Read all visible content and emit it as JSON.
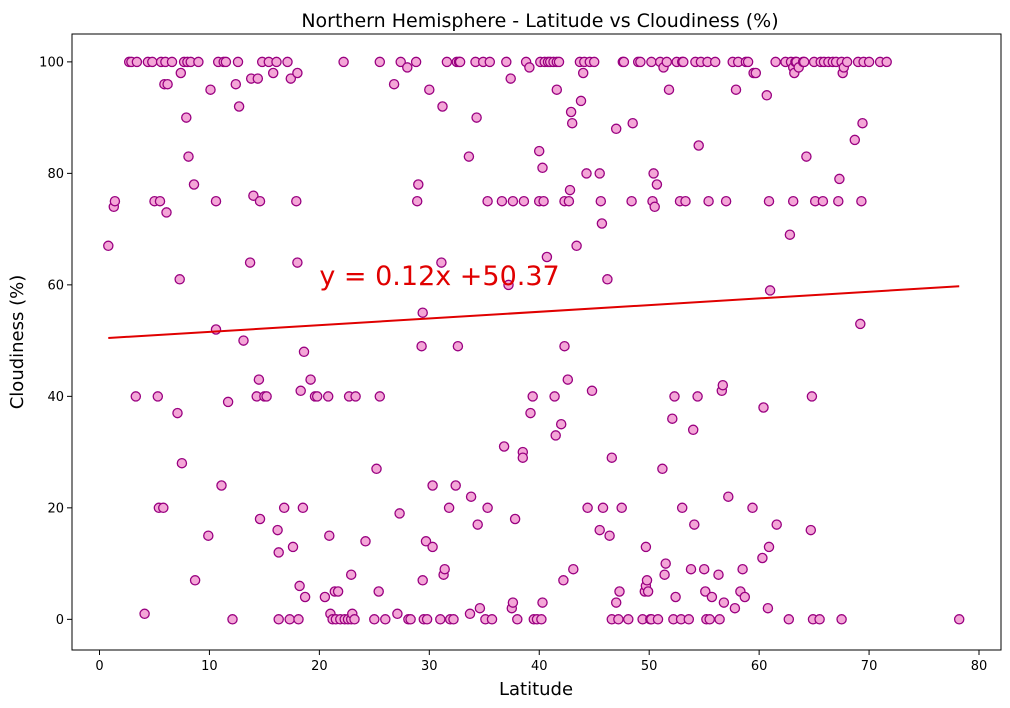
{
  "chart_data": {
    "type": "scatter",
    "title": "Northern Hemisphere - Latitude vs Cloudiness (%)",
    "xlabel": "Latitude",
    "ylabel": "Cloudiness (%)",
    "xlim": [
      -2.5,
      82
    ],
    "ylim": [
      -5.5,
      105
    ],
    "xticks": [
      0,
      10,
      20,
      30,
      40,
      50,
      60,
      70,
      80
    ],
    "yticks": [
      0,
      20,
      40,
      60,
      80,
      100
    ],
    "grid": false,
    "marker": {
      "fill": "#f4a6d7",
      "stroke": "#990080"
    },
    "regression": {
      "slope": 0.12,
      "intercept": 50.37,
      "x_range": [
        0.8,
        78.2
      ],
      "color": "#e00000",
      "equation_label": "y = 0.12x +50.37",
      "equation_position": [
        20,
        60
      ]
    },
    "points": [
      [
        0.8,
        67
      ],
      [
        1.3,
        74
      ],
      [
        1.4,
        75
      ],
      [
        2.7,
        100
      ],
      [
        2.9,
        100
      ],
      [
        3.3,
        40
      ],
      [
        3.4,
        100
      ],
      [
        4.1,
        1
      ],
      [
        4.4,
        100
      ],
      [
        4.8,
        100
      ],
      [
        5,
        75
      ],
      [
        5.3,
        40
      ],
      [
        5.4,
        20
      ],
      [
        5.5,
        75
      ],
      [
        5.6,
        100
      ],
      [
        5.8,
        20
      ],
      [
        5.9,
        96
      ],
      [
        6,
        100
      ],
      [
        6.2,
        96
      ],
      [
        6.1,
        73
      ],
      [
        6.6,
        100
      ],
      [
        7.1,
        37
      ],
      [
        7.3,
        61
      ],
      [
        7.4,
        98
      ],
      [
        7.5,
        28
      ],
      [
        7.7,
        100
      ],
      [
        7.9,
        90
      ],
      [
        8,
        100
      ],
      [
        8.1,
        83
      ],
      [
        8.3,
        100
      ],
      [
        8.6,
        78
      ],
      [
        8.7,
        7
      ],
      [
        9,
        100
      ],
      [
        9.9,
        15
      ],
      [
        10.1,
        95
      ],
      [
        10.6,
        75
      ],
      [
        10.6,
        52
      ],
      [
        10.8,
        100
      ],
      [
        11.1,
        24
      ],
      [
        11.3,
        100
      ],
      [
        11.5,
        100
      ],
      [
        11.7,
        39
      ],
      [
        12.1,
        0
      ],
      [
        12.4,
        96
      ],
      [
        12.6,
        100
      ],
      [
        12.7,
        92
      ],
      [
        13.1,
        50
      ],
      [
        13.7,
        64
      ],
      [
        13.8,
        97
      ],
      [
        14,
        76
      ],
      [
        14.3,
        40
      ],
      [
        14.4,
        97
      ],
      [
        14.5,
        43
      ],
      [
        14.6,
        75
      ],
      [
        14.6,
        18
      ],
      [
        14.8,
        100
      ],
      [
        15,
        40
      ],
      [
        15.2,
        40
      ],
      [
        15.4,
        100
      ],
      [
        15.8,
        98
      ],
      [
        16.1,
        100
      ],
      [
        16.2,
        16
      ],
      [
        16.3,
        0
      ],
      [
        16.3,
        12
      ],
      [
        16.8,
        20
      ],
      [
        17.1,
        100
      ],
      [
        17.3,
        0
      ],
      [
        17.4,
        97
      ],
      [
        17.6,
        13
      ],
      [
        17.9,
        75
      ],
      [
        18,
        98
      ],
      [
        18,
        64
      ],
      [
        18.1,
        0
      ],
      [
        18.2,
        6
      ],
      [
        18.3,
        41
      ],
      [
        18.5,
        20
      ],
      [
        18.6,
        48
      ],
      [
        18.7,
        4
      ],
      [
        19.2,
        43
      ],
      [
        19.6,
        40
      ],
      [
        19.8,
        40
      ],
      [
        20.5,
        4
      ],
      [
        20.8,
        40
      ],
      [
        20.9,
        15
      ],
      [
        21,
        1
      ],
      [
        21.2,
        0
      ],
      [
        21.4,
        5
      ],
      [
        21.5,
        0
      ],
      [
        21.7,
        5
      ],
      [
        21.9,
        0
      ],
      [
        22.2,
        100
      ],
      [
        22.3,
        0
      ],
      [
        22.6,
        0
      ],
      [
        22.7,
        40
      ],
      [
        22.9,
        8
      ],
      [
        22.9,
        0
      ],
      [
        23,
        1
      ],
      [
        23.2,
        0
      ],
      [
        23.3,
        40
      ],
      [
        24.2,
        14
      ],
      [
        25,
        0
      ],
      [
        25.2,
        27
      ],
      [
        25.4,
        5
      ],
      [
        25.5,
        40
      ],
      [
        25.5,
        100
      ],
      [
        26,
        0
      ],
      [
        26.8,
        96
      ],
      [
        27.1,
        1
      ],
      [
        27.3,
        19
      ],
      [
        27.4,
        100
      ],
      [
        28,
        99
      ],
      [
        28.1,
        0
      ],
      [
        28.3,
        0
      ],
      [
        28.8,
        100
      ],
      [
        28.9,
        75
      ],
      [
        29,
        78
      ],
      [
        29.3,
        49
      ],
      [
        29.4,
        55
      ],
      [
        29.4,
        7
      ],
      [
        29.5,
        0
      ],
      [
        29.7,
        14
      ],
      [
        29.8,
        0
      ],
      [
        30,
        95
      ],
      [
        30.3,
        13
      ],
      [
        30.3,
        24
      ],
      [
        31,
        0
      ],
      [
        31.1,
        64
      ],
      [
        31.2,
        92
      ],
      [
        31.3,
        8
      ],
      [
        31.4,
        9
      ],
      [
        31.6,
        100
      ],
      [
        31.8,
        20
      ],
      [
        31.9,
        0
      ],
      [
        32.2,
        0
      ],
      [
        32.4,
        24
      ],
      [
        32.5,
        100
      ],
      [
        32.6,
        49
      ],
      [
        32.7,
        100
      ],
      [
        32.8,
        100
      ],
      [
        33.6,
        83
      ],
      [
        33.7,
        1
      ],
      [
        33.8,
        22
      ],
      [
        34.2,
        100
      ],
      [
        34.3,
        90
      ],
      [
        34.4,
        17
      ],
      [
        34.6,
        2
      ],
      [
        34.9,
        100
      ],
      [
        35.1,
        0
      ],
      [
        35.3,
        75
      ],
      [
        35.3,
        20
      ],
      [
        35.5,
        100
      ],
      [
        35.7,
        0
      ],
      [
        36.6,
        75
      ],
      [
        36.8,
        31
      ],
      [
        37,
        100
      ],
      [
        37.2,
        60
      ],
      [
        37.4,
        97
      ],
      [
        37.5,
        2
      ],
      [
        37.6,
        3
      ],
      [
        37.6,
        75
      ],
      [
        37.8,
        18
      ],
      [
        38,
        0
      ],
      [
        38.5,
        30
      ],
      [
        38.5,
        29
      ],
      [
        38.6,
        75
      ],
      [
        38.8,
        100
      ],
      [
        39.1,
        99
      ],
      [
        39.2,
        37
      ],
      [
        39.4,
        40
      ],
      [
        39.5,
        0
      ],
      [
        39.8,
        0
      ],
      [
        40,
        84
      ],
      [
        40.1,
        100
      ],
      [
        40,
        75
      ],
      [
        40.2,
        0
      ],
      [
        40.3,
        3
      ],
      [
        40.3,
        81
      ],
      [
        40.4,
        75
      ],
      [
        40.5,
        100
      ],
      [
        40.7,
        65
      ],
      [
        40.8,
        100
      ],
      [
        41,
        100
      ],
      [
        41.3,
        100
      ],
      [
        41.4,
        40
      ],
      [
        41.5,
        33
      ],
      [
        41.6,
        100
      ],
      [
        41.6,
        95
      ],
      [
        41.8,
        100
      ],
      [
        42,
        35
      ],
      [
        42.2,
        7
      ],
      [
        42.3,
        49
      ],
      [
        42.3,
        75
      ],
      [
        42.6,
        43
      ],
      [
        42.7,
        75
      ],
      [
        42.8,
        77
      ],
      [
        42.9,
        91
      ],
      [
        43,
        89
      ],
      [
        43.1,
        9
      ],
      [
        43.4,
        67
      ],
      [
        43.7,
        100
      ],
      [
        43.8,
        93
      ],
      [
        44,
        98
      ],
      [
        44.1,
        100
      ],
      [
        44.3,
        80
      ],
      [
        44.4,
        20
      ],
      [
        44.6,
        100
      ],
      [
        44.8,
        41
      ],
      [
        45,
        100
      ],
      [
        45.5,
        80
      ],
      [
        45.5,
        16
      ],
      [
        45.6,
        75
      ],
      [
        45.7,
        71
      ],
      [
        45.8,
        20
      ],
      [
        46.2,
        61
      ],
      [
        46.4,
        15
      ],
      [
        46.6,
        0
      ],
      [
        46.6,
        29
      ],
      [
        47,
        88
      ],
      [
        47,
        3
      ],
      [
        47.2,
        0
      ],
      [
        47.3,
        5
      ],
      [
        47.5,
        20
      ],
      [
        47.6,
        100
      ],
      [
        47.7,
        100
      ],
      [
        48.1,
        0
      ],
      [
        48.4,
        75
      ],
      [
        48.5,
        89
      ],
      [
        49,
        100
      ],
      [
        49.2,
        100
      ],
      [
        49.4,
        0
      ],
      [
        49.7,
        13
      ],
      [
        49.6,
        5
      ],
      [
        49.7,
        6
      ],
      [
        49.8,
        7
      ],
      [
        49.9,
        5
      ],
      [
        50.1,
        0
      ],
      [
        50.2,
        0
      ],
      [
        50.2,
        100
      ],
      [
        50.3,
        75
      ],
      [
        50.4,
        80
      ],
      [
        50.5,
        74
      ],
      [
        50.7,
        78
      ],
      [
        50.8,
        0
      ],
      [
        51,
        100
      ],
      [
        51.2,
        27
      ],
      [
        51.3,
        99
      ],
      [
        51.4,
        8
      ],
      [
        51.5,
        10
      ],
      [
        51.6,
        100
      ],
      [
        51.8,
        95
      ],
      [
        52.1,
        36
      ],
      [
        52.2,
        0
      ],
      [
        52.3,
        40
      ],
      [
        52.4,
        4
      ],
      [
        52.5,
        100
      ],
      [
        52.8,
        75
      ],
      [
        52.9,
        0
      ],
      [
        53,
        20
      ],
      [
        53,
        100
      ],
      [
        53.1,
        100
      ],
      [
        53.3,
        75
      ],
      [
        53.6,
        0
      ],
      [
        53.8,
        9
      ],
      [
        54,
        34
      ],
      [
        54.1,
        17
      ],
      [
        54.2,
        100
      ],
      [
        54.4,
        40
      ],
      [
        54.5,
        85
      ],
      [
        54.7,
        100
      ],
      [
        55,
        9
      ],
      [
        55.1,
        5
      ],
      [
        55.2,
        0
      ],
      [
        55.3,
        100
      ],
      [
        55.4,
        75
      ],
      [
        55.5,
        0
      ],
      [
        55.7,
        4
      ],
      [
        56,
        100
      ],
      [
        56.3,
        8
      ],
      [
        56.4,
        0
      ],
      [
        56.6,
        41
      ],
      [
        56.7,
        42
      ],
      [
        56.8,
        3
      ],
      [
        57,
        75
      ],
      [
        57.2,
        22
      ],
      [
        57.6,
        100
      ],
      [
        57.8,
        2
      ],
      [
        57.9,
        95
      ],
      [
        58.1,
        100
      ],
      [
        58.3,
        5
      ],
      [
        58.5,
        9
      ],
      [
        58.7,
        4
      ],
      [
        58.8,
        100
      ],
      [
        59,
        100
      ],
      [
        59.4,
        20
      ],
      [
        59.5,
        98
      ],
      [
        59.7,
        98
      ],
      [
        60.3,
        11
      ],
      [
        60.4,
        38
      ],
      [
        60.7,
        94
      ],
      [
        60.8,
        2
      ],
      [
        60.9,
        75
      ],
      [
        60.9,
        13
      ],
      [
        61,
        59
      ],
      [
        61.5,
        100
      ],
      [
        61.6,
        17
      ],
      [
        62.4,
        100
      ],
      [
        62.8,
        69
      ],
      [
        62.7,
        0
      ],
      [
        62.9,
        100
      ],
      [
        63.1,
        75
      ],
      [
        63.1,
        99
      ],
      [
        63.2,
        98
      ],
      [
        63.3,
        100
      ],
      [
        63.4,
        100
      ],
      [
        63.6,
        99
      ],
      [
        64,
        100
      ],
      [
        64.1,
        100
      ],
      [
        64.3,
        83
      ],
      [
        64.7,
        16
      ],
      [
        64.8,
        40
      ],
      [
        64.9,
        0
      ],
      [
        65,
        100
      ],
      [
        65.1,
        75
      ],
      [
        65.5,
        0
      ],
      [
        65.6,
        100
      ],
      [
        65.8,
        75
      ],
      [
        65.9,
        100
      ],
      [
        66.3,
        100
      ],
      [
        66.7,
        100
      ],
      [
        67,
        100
      ],
      [
        67.2,
        75
      ],
      [
        67.3,
        79
      ],
      [
        67.5,
        100
      ],
      [
        67.6,
        98
      ],
      [
        67.5,
        0
      ],
      [
        67.7,
        99
      ],
      [
        68,
        100
      ],
      [
        68.7,
        86
      ],
      [
        69,
        100
      ],
      [
        69.2,
        53
      ],
      [
        69.3,
        75
      ],
      [
        69.4,
        89
      ],
      [
        69.5,
        100
      ],
      [
        70,
        100
      ],
      [
        71,
        100
      ],
      [
        71.6,
        100
      ],
      [
        78.2,
        0
      ]
    ]
  }
}
